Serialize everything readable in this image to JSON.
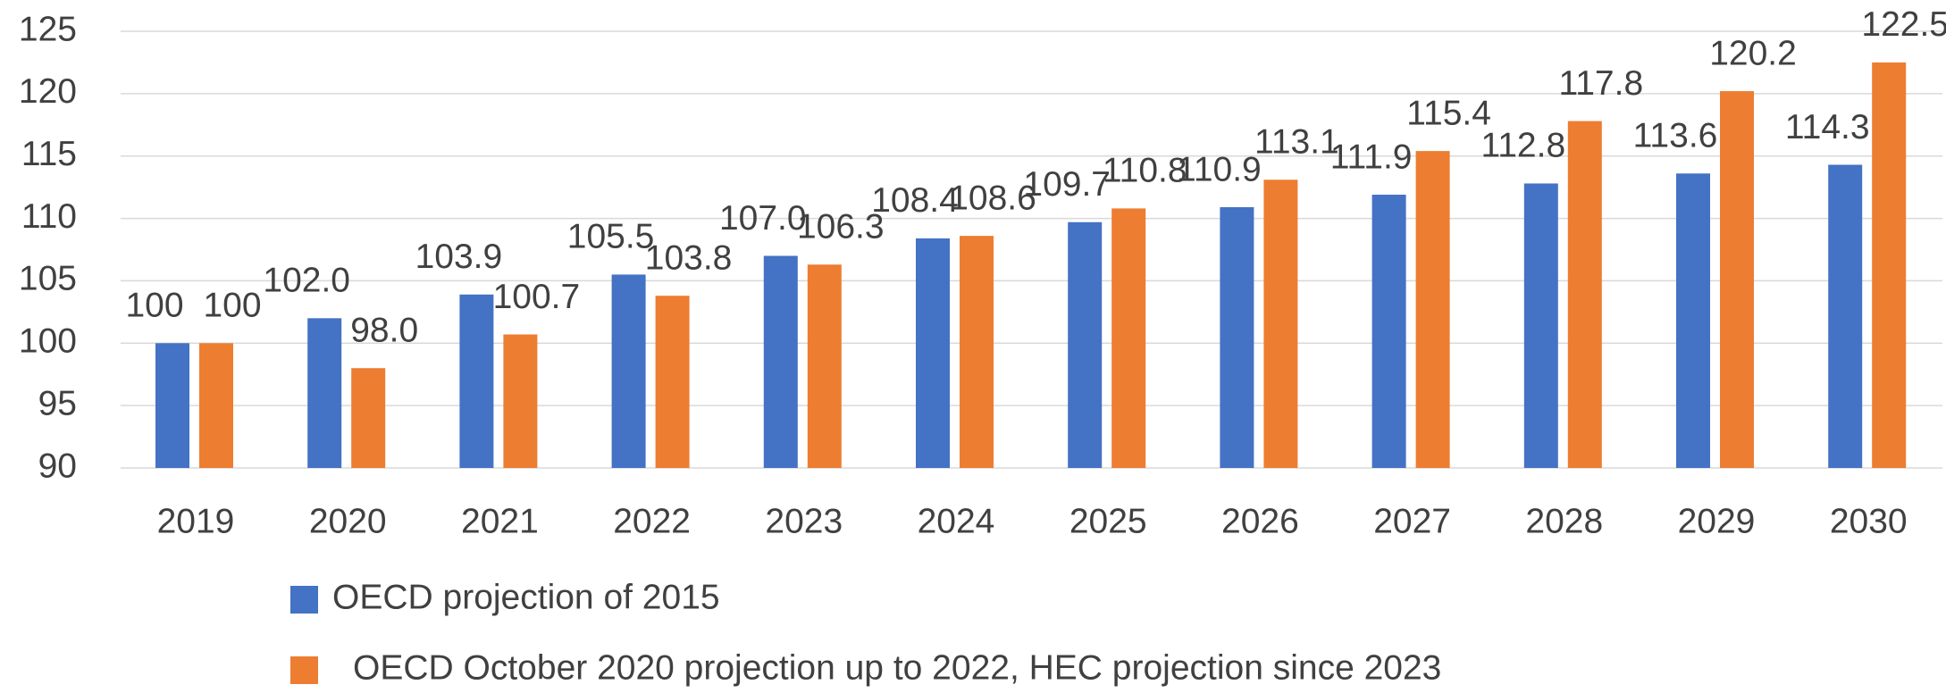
{
  "chart_data": {
    "type": "bar",
    "categories": [
      "2019",
      "2020",
      "2021",
      "2022",
      "2023",
      "2024",
      "2025",
      "2026",
      "2027",
      "2028",
      "2029",
      "2030"
    ],
    "series": [
      {
        "name": "OECD projection of 2015",
        "color": "#4472c4",
        "values": [
          100,
          102.0,
          103.9,
          105.5,
          107.0,
          108.4,
          109.7,
          110.9,
          111.9,
          112.8,
          113.6,
          114.3
        ],
        "value_labels": [
          "100",
          "102.0",
          "103.9",
          "105.5",
          "107.0",
          "108.4",
          "109.7",
          "110.9",
          "111.9",
          "112.8",
          "113.6",
          "114.3"
        ]
      },
      {
        "name": "OECD October 2020 projection up to 2022, HEC projection since 2023",
        "color": "#ed7d31",
        "values": [
          100,
          98.0,
          100.7,
          103.8,
          106.3,
          108.6,
          110.8,
          113.1,
          115.4,
          117.8,
          120.2,
          122.5
        ],
        "value_labels": [
          "100",
          "98.0",
          "100.7",
          "103.8",
          "106.3",
          "108.6",
          "110.8",
          "113.1",
          "115.4",
          "117.8",
          "120.2",
          "122.5"
        ]
      }
    ],
    "ylim": [
      90,
      125
    ],
    "yticks": [
      90,
      95,
      100,
      105,
      110,
      115,
      120,
      125
    ],
    "grid": true
  }
}
